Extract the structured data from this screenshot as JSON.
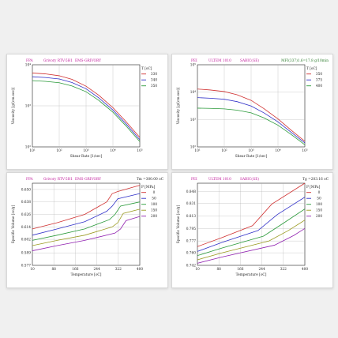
{
  "chart_data": [
    {
      "type": "line",
      "log_x": true,
      "log_y": true,
      "header_left": "FPA",
      "header_mid": "Grivory RTV-5H1",
      "header_right": "EMS-GRIVORY",
      "header_right2": "",
      "xlabel": "Shear Rate [1/sec]",
      "ylabel": "Viscosity [g/(cm.sec)]",
      "legend_title": "T [oC]",
      "xlim": [
        10,
        100000
      ],
      "ylim": [
        100,
        10000
      ],
      "xticks": [
        10,
        100,
        1000,
        10000,
        100000
      ],
      "xtick_labels": [
        "10¹",
        "10²",
        "10³",
        "10⁴",
        "10⁵"
      ],
      "yticks": [
        100,
        1000,
        10000
      ],
      "ytick_labels": [
        "10²",
        "10³",
        "10⁴"
      ],
      "colors": [
        "#d03030",
        "#3030c8",
        "#2a9a3a"
      ],
      "series": [
        {
          "name": "330",
          "x": [
            10,
            30,
            100,
            300,
            1000,
            3000,
            10000,
            30000,
            100000
          ],
          "y": [
            6300,
            6000,
            5400,
            4400,
            3000,
            1800,
            900,
            420,
            170
          ]
        },
        {
          "name": "340",
          "x": [
            10,
            30,
            100,
            300,
            1000,
            3000,
            10000,
            30000,
            100000
          ],
          "y": [
            5100,
            4900,
            4500,
            3700,
            2600,
            1550,
            790,
            370,
            150
          ]
        },
        {
          "name": "350",
          "x": [
            10,
            30,
            100,
            300,
            1000,
            3000,
            10000,
            30000,
            100000
          ],
          "y": [
            4100,
            3950,
            3650,
            3050,
            2200,
            1350,
            700,
            330,
            135
          ]
        }
      ]
    },
    {
      "type": "line",
      "log_x": true,
      "log_y": true,
      "header_left": "PEI",
      "header_mid": "ULTEM 1010",
      "header_right": "SABIC(GE)",
      "header_right2": "MFI(337)1.6=17.8 g/10min",
      "xlabel": "Shear Rate [1/sec]",
      "ylabel": "Viscosity [g/(cm.sec)]",
      "legend_title": "T [oC]",
      "xlim": [
        10,
        100000
      ],
      "ylim": [
        100,
        100000
      ],
      "xticks": [
        10,
        100,
        1000,
        10000,
        100000
      ],
      "xtick_labels": [
        "10¹",
        "10²",
        "10³",
        "10⁴",
        "10⁵"
      ],
      "yticks": [
        100,
        1000,
        10000,
        100000
      ],
      "ytick_labels": [
        "10²",
        "10³",
        "10⁴",
        "10⁵"
      ],
      "colors": [
        "#d03030",
        "#3030c8",
        "#2a9a3a"
      ],
      "series": [
        {
          "name": "350",
          "x": [
            10,
            30,
            100,
            300,
            1000,
            3000,
            10000,
            30000,
            100000
          ],
          "y": [
            13000,
            12000,
            10500,
            8000,
            5000,
            2500,
            1050,
            420,
            160
          ]
        },
        {
          "name": "375",
          "x": [
            10,
            30,
            100,
            300,
            1000,
            3000,
            10000,
            30000,
            100000
          ],
          "y": [
            6300,
            6000,
            5500,
            4500,
            3100,
            1750,
            820,
            350,
            140
          ]
        },
        {
          "name": "400",
          "x": [
            10,
            30,
            100,
            300,
            1000,
            3000,
            10000,
            30000,
            100000
          ],
          "y": [
            2600,
            2550,
            2450,
            2200,
            1750,
            1150,
            620,
            290,
            120
          ]
        }
      ]
    },
    {
      "type": "line",
      "log_x": false,
      "log_y": false,
      "header_left": "FPA",
      "header_mid": "Grivory RTV-5H1",
      "header_right": "EMS-GRIVORY",
      "header_right2": "Tm =300.00 oC",
      "xlabel": "Temperature [oC]",
      "ylabel": "Specific Volume [cc/g]",
      "legend_title": "P [MPa]",
      "xlim": [
        10,
        400
      ],
      "ylim": [
        0.577,
        0.656
      ],
      "xticks": [
        10,
        88,
        166,
        244,
        322,
        400
      ],
      "xtick_labels": [
        "10",
        "88",
        "166",
        "244",
        "322",
        "400"
      ],
      "yticks": [
        0.577,
        0.589,
        0.602,
        0.614,
        0.626,
        0.638,
        0.65
      ],
      "ytick_labels": [
        "0.577",
        "0.589",
        "0.602",
        "0.614",
        "0.626",
        "0.638",
        "0.650"
      ],
      "colors": [
        "#d03030",
        "#3030c8",
        "#2a9a3a",
        "#9a9a20",
        "#9020b0"
      ],
      "series": [
        {
          "name": "0",
          "x": [
            10,
            100,
            200,
            280,
            300,
            320,
            400
          ],
          "y": [
            0.612,
            0.618,
            0.626,
            0.638,
            0.646,
            0.648,
            0.654
          ]
        },
        {
          "name": "50",
          "x": [
            10,
            100,
            200,
            280,
            300,
            320,
            400
          ],
          "y": [
            0.606,
            0.612,
            0.619,
            0.629,
            0.634,
            0.641,
            0.646
          ]
        },
        {
          "name": "100",
          "x": [
            10,
            100,
            200,
            290,
            310,
            330,
            400
          ],
          "y": [
            0.601,
            0.606,
            0.612,
            0.621,
            0.626,
            0.634,
            0.638
          ]
        },
        {
          "name": "150",
          "x": [
            10,
            100,
            200,
            300,
            320,
            340,
            400
          ],
          "y": [
            0.596,
            0.601,
            0.606,
            0.614,
            0.618,
            0.627,
            0.631
          ]
        },
        {
          "name": "200",
          "x": [
            10,
            100,
            200,
            310,
            330,
            350,
            400
          ],
          "y": [
            0.591,
            0.596,
            0.601,
            0.608,
            0.612,
            0.62,
            0.624
          ]
        }
      ]
    },
    {
      "type": "line",
      "log_x": false,
      "log_y": false,
      "header_left": "PEI",
      "header_mid": "ULTEM 1010",
      "header_right": "SABIC(GE)",
      "header_right2": "Tg =203.16 oC",
      "xlabel": "Temperature [oC]",
      "ylabel": "Specific Volume [cc/g]",
      "legend_title": "P [MPa]",
      "xlim": [
        10,
        400
      ],
      "ylim": [
        0.742,
        0.86
      ],
      "xticks": [
        10,
        88,
        166,
        244,
        322,
        400
      ],
      "xtick_labels": [
        "10",
        "88",
        "166",
        "244",
        "322",
        "400"
      ],
      "yticks": [
        0.742,
        0.76,
        0.777,
        0.795,
        0.813,
        0.831,
        0.848
      ],
      "ytick_labels": [
        "0.742",
        "0.760",
        "0.777",
        "0.795",
        "0.813",
        "0.831",
        "0.848"
      ],
      "colors": [
        "#d03030",
        "#3030c8",
        "#2a9a3a",
        "#9a9a20",
        "#9020b0"
      ],
      "series": [
        {
          "name": "0",
          "x": [
            10,
            100,
            210,
            280,
            400
          ],
          "y": [
            0.769,
            0.782,
            0.799,
            0.83,
            0.86
          ]
        },
        {
          "name": "50",
          "x": [
            10,
            100,
            230,
            300,
            400
          ],
          "y": [
            0.762,
            0.775,
            0.792,
            0.815,
            0.84
          ]
        },
        {
          "name": "100",
          "x": [
            10,
            100,
            250,
            320,
            400
          ],
          "y": [
            0.756,
            0.767,
            0.784,
            0.802,
            0.823
          ]
        },
        {
          "name": "150",
          "x": [
            10,
            100,
            270,
            340,
            400
          ],
          "y": [
            0.75,
            0.76,
            0.777,
            0.792,
            0.807
          ]
        },
        {
          "name": "200",
          "x": [
            10,
            100,
            290,
            360,
            400
          ],
          "y": [
            0.745,
            0.754,
            0.771,
            0.785,
            0.795
          ]
        }
      ]
    }
  ]
}
